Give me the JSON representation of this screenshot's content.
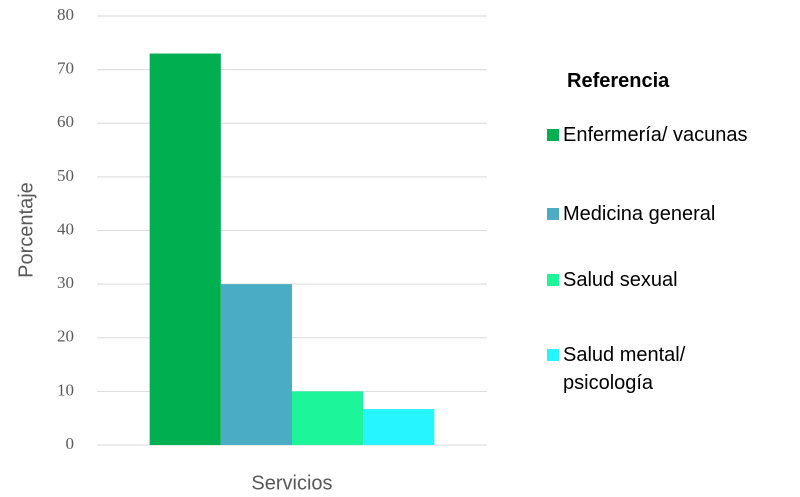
{
  "chart_data": {
    "type": "bar",
    "x_label": "Servicios",
    "y_label": "Porcentaje",
    "legend_title": "Referencia",
    "categories": [
      "Servicios"
    ],
    "series": [
      {
        "name": "Enfermería/ vacunas",
        "color": "#00b050",
        "values": [
          73
        ]
      },
      {
        "name": "Medicina general",
        "color": "#4bacc6",
        "values": [
          30
        ]
      },
      {
        "name": "Salud sexual",
        "color": "#1cf59a",
        "values": [
          10
        ]
      },
      {
        "name": "Salud mental/ psicología",
        "color": "#26f4ff",
        "values": [
          6.7
        ]
      }
    ],
    "ylim": [
      0,
      80
    ],
    "yticks": [
      0,
      10,
      20,
      30,
      40,
      50,
      60,
      70,
      80
    ],
    "grid": true,
    "legend": "right"
  }
}
